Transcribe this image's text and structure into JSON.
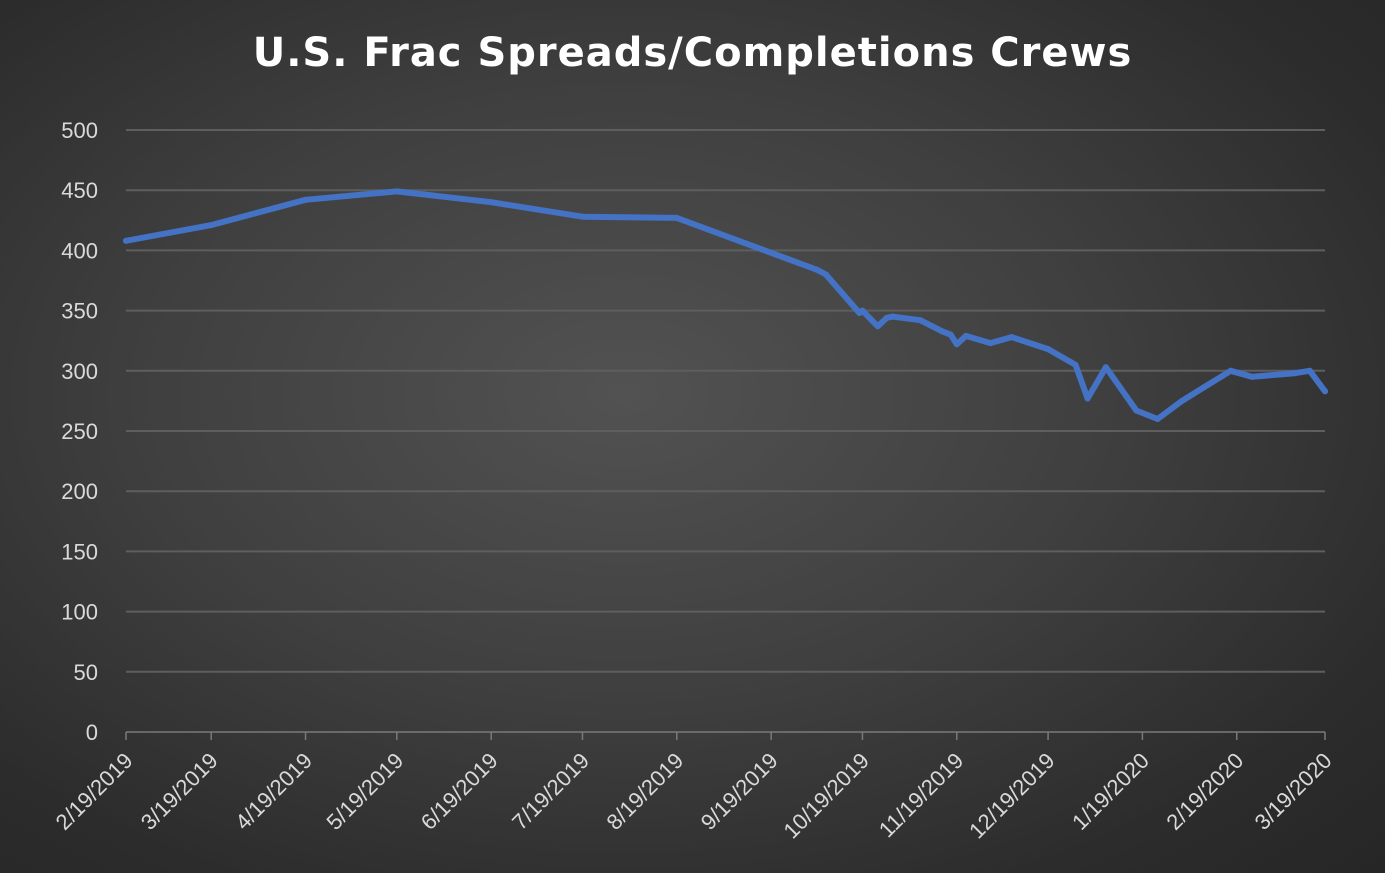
{
  "chart_data": {
    "type": "line",
    "title": "U.S. Frac Spreads/Completions Crews",
    "xlabel": "",
    "ylabel": "",
    "ylim": [
      0,
      500
    ],
    "y_ticks": [
      0,
      50,
      100,
      150,
      200,
      250,
      300,
      350,
      400,
      450,
      500
    ],
    "x_range": [
      "2019-02-19",
      "2020-03-19"
    ],
    "x_ticks": [
      {
        "date": "2019-02-19",
        "label": "2/19/2019"
      },
      {
        "date": "2019-03-19",
        "label": "3/19/2019"
      },
      {
        "date": "2019-04-19",
        "label": "4/19/2019"
      },
      {
        "date": "2019-05-19",
        "label": "5/19/2019"
      },
      {
        "date": "2019-06-19",
        "label": "6/19/2019"
      },
      {
        "date": "2019-07-19",
        "label": "7/19/2019"
      },
      {
        "date": "2019-08-19",
        "label": "8/19/2019"
      },
      {
        "date": "2019-09-19",
        "label": "9/19/2019"
      },
      {
        "date": "2019-10-19",
        "label": "10/19/2019"
      },
      {
        "date": "2019-11-19",
        "label": "11/19/2019"
      },
      {
        "date": "2019-12-19",
        "label": "12/19/2019"
      },
      {
        "date": "2020-01-19",
        "label": "1/19/2020"
      },
      {
        "date": "2020-02-19",
        "label": "2/19/2020"
      },
      {
        "date": "2020-03-19",
        "label": "3/19/2020"
      }
    ],
    "grid": true,
    "legend": "none",
    "colors": {
      "line": "#4472c4",
      "grid": "#5e5e5e",
      "axis": "#7a7a7a",
      "text": "#d9d9d9"
    },
    "series": [
      {
        "x": [
          "2019-02-19",
          "2019-03-19",
          "2019-04-19",
          "2019-05-19",
          "2019-06-19",
          "2019-07-19",
          "2019-08-19",
          "2019-09-19",
          "2019-10-04",
          "2019-10-07",
          "2019-10-18",
          "2019-10-19",
          "2019-10-24",
          "2019-10-27",
          "2019-10-29",
          "2019-11-07",
          "2019-11-14",
          "2019-11-17",
          "2019-11-19",
          "2019-11-22",
          "2019-11-30",
          "2019-12-07",
          "2019-12-19",
          "2019-12-28",
          "2020-01-01",
          "2020-01-07",
          "2020-01-17",
          "2020-01-24",
          "2020-02-01",
          "2020-02-08",
          "2020-02-17",
          "2020-02-24",
          "2020-03-09",
          "2020-03-14",
          "2020-03-19"
        ],
        "values": [
          408,
          421,
          442,
          449,
          440,
          428,
          427,
          398,
          384,
          380,
          348,
          350,
          337,
          344,
          345,
          342,
          333,
          330,
          322,
          329,
          323,
          328,
          318,
          305,
          277,
          303,
          267,
          260,
          275,
          286,
          300,
          295,
          298,
          300,
          283
        ]
      }
    ]
  }
}
